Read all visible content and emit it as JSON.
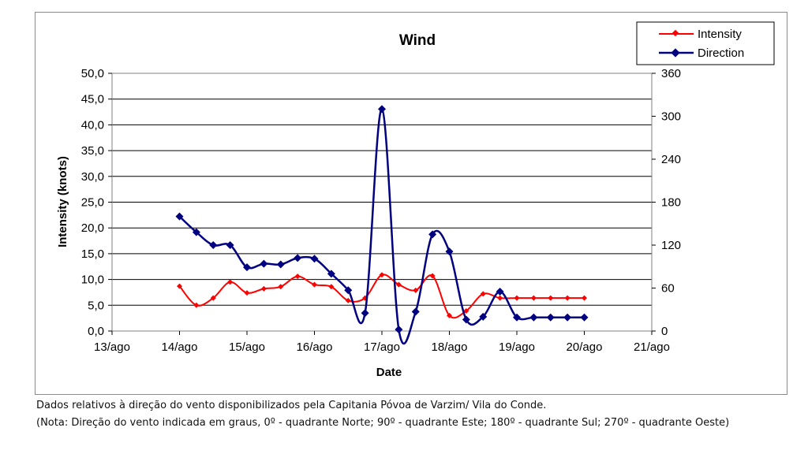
{
  "chart_data": {
    "type": "line",
    "title": "Wind",
    "xlabel": "Date",
    "ylabel": "Intensity (knots)",
    "y2label": "",
    "x_ticks": [
      "13/ago",
      "14/ago",
      "15/ago",
      "16/ago",
      "17/ago",
      "18/ago",
      "19/ago",
      "20/ago",
      "21/ago"
    ],
    "xlim": [
      0,
      8
    ],
    "ylim": [
      0,
      50
    ],
    "y_ticks": [
      "0,0",
      "5,0",
      "10,0",
      "15,0",
      "20,0",
      "25,0",
      "30,0",
      "35,0",
      "40,0",
      "45,0",
      "50,0"
    ],
    "y2lim": [
      0,
      360
    ],
    "y2_ticks": [
      "0",
      "60",
      "120",
      "180",
      "240",
      "300",
      "360"
    ],
    "grid": true,
    "legend_position": "top-right",
    "series": [
      {
        "name": "Intensity",
        "axis": "left",
        "color": "#ff0000",
        "marker": "diamond",
        "x": [
          1.0,
          1.25,
          1.5,
          1.75,
          2.0,
          2.25,
          2.5,
          2.75,
          3.0,
          3.25,
          3.5,
          3.75,
          4.0,
          4.25,
          4.5,
          4.75,
          5.0,
          5.25,
          5.5,
          5.75,
          6.0,
          6.25,
          6.5,
          6.75,
          7.0
        ],
        "values": [
          8.7,
          5.0,
          6.4,
          9.5,
          7.4,
          8.2,
          8.6,
          10.6,
          9.0,
          8.6,
          5.9,
          6.4,
          10.9,
          9.0,
          7.9,
          10.7,
          3.0,
          3.9,
          7.2,
          6.4,
          6.4,
          6.4,
          6.4,
          6.4,
          6.4
        ]
      },
      {
        "name": "Direction",
        "axis": "right",
        "color": "#000080",
        "marker": "diamond",
        "x": [
          1.0,
          1.25,
          1.5,
          1.75,
          2.0,
          2.25,
          2.5,
          2.75,
          3.0,
          3.25,
          3.5,
          3.75,
          4.0,
          4.25,
          4.5,
          4.75,
          5.0,
          5.25,
          5.5,
          5.75,
          6.0,
          6.25,
          6.5,
          6.75,
          7.0
        ],
        "values": [
          160,
          138,
          120,
          120,
          89,
          94,
          93,
          102,
          101,
          80,
          57,
          25,
          310,
          2,
          27,
          135,
          111,
          16,
          20,
          55,
          19,
          19,
          19,
          19,
          19
        ]
      }
    ]
  },
  "caption": {
    "line1": "Dados relativos à direção do vento disponibilizados pela Capitania Póvoa de Varzim/ Vila do Conde.",
    "note": "(Nota: Direção do vento indicada em graus, 0º - quadrante Norte; 90º - quadrante Este; 180º - quadrante Sul; 270º - quadrante Oeste)"
  }
}
